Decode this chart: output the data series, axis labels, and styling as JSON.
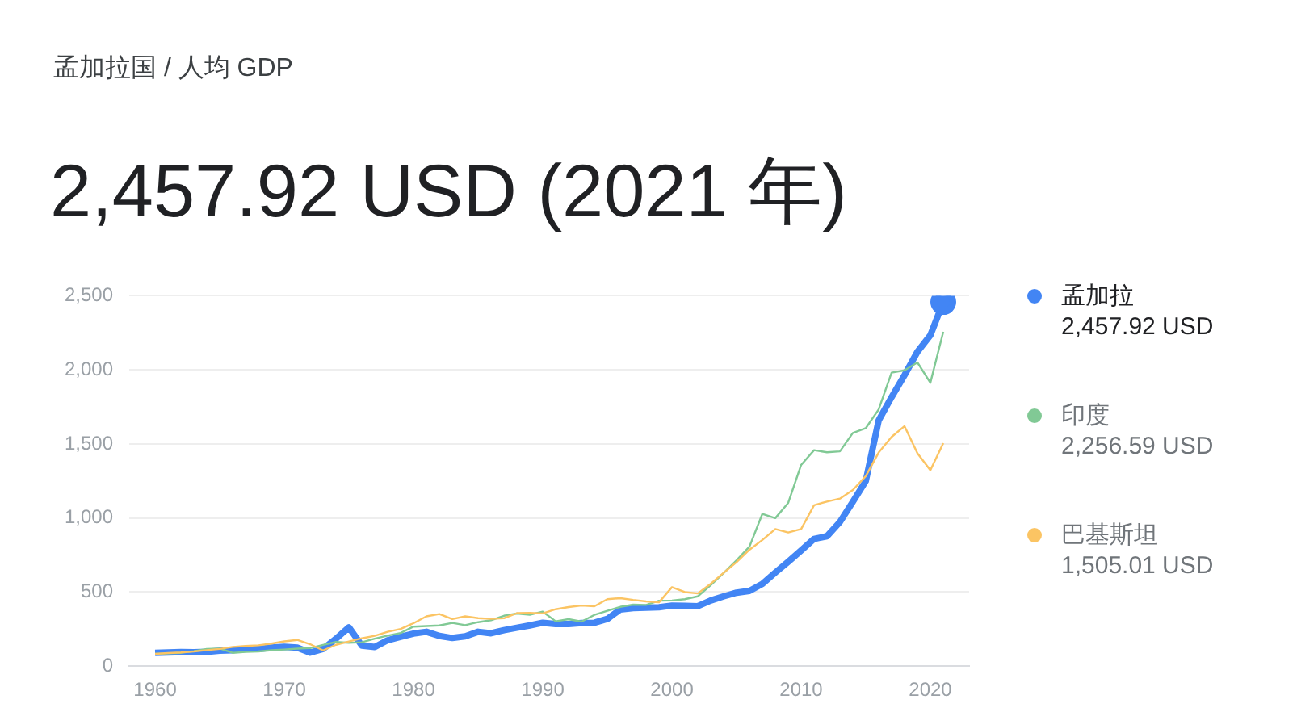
{
  "chart_data": {
    "type": "line",
    "title": "孟加拉国 / 人均 GDP",
    "subtitle": "2,457.92 USD (2021 年)",
    "x": [
      1960,
      1961,
      1962,
      1963,
      1964,
      1965,
      1966,
      1967,
      1968,
      1969,
      1970,
      1971,
      1972,
      1973,
      1974,
      1975,
      1976,
      1977,
      1978,
      1979,
      1980,
      1981,
      1982,
      1983,
      1984,
      1985,
      1986,
      1987,
      1988,
      1989,
      1990,
      1991,
      1992,
      1993,
      1994,
      1995,
      1996,
      1997,
      1998,
      1999,
      2000,
      2001,
      2002,
      2003,
      2004,
      2005,
      2006,
      2007,
      2008,
      2009,
      2010,
      2011,
      2012,
      2013,
      2014,
      2015,
      2016,
      2017,
      2018,
      2019,
      2020,
      2021
    ],
    "series": [
      {
        "name": "孟加拉",
        "color": "#4285f4",
        "values": [
          89,
          92,
          95,
          94,
          97,
          104,
          108,
          115,
          115,
          125,
          131,
          125,
          91,
          116,
          185,
          262,
          139,
          129,
          175,
          198,
          220,
          232,
          204,
          190,
          201,
          232,
          222,
          243,
          259,
          275,
          293,
          284,
          285,
          291,
          293,
          319,
          383,
          392,
          395,
          398,
          409,
          407,
          405,
          443,
          471,
          496,
          508,
          555,
          632,
          705,
          781,
          859,
          877,
          973,
          1109,
          1249,
          1659,
          1816,
          1964,
          2122,
          2234,
          2457.92
        ]
      },
      {
        "name": "印度",
        "color": "#81c995",
        "values": [
          83,
          86,
          90,
          101,
          116,
          119,
          90,
          96,
          99,
          107,
          112,
          118,
          122,
          143,
          163,
          158,
          161,
          186,
          206,
          224,
          267,
          271,
          275,
          292,
          277,
          297,
          310,
          340,
          355,
          347,
          368,
          303,
          317,
          301,
          346,
          374,
          400,
          415,
          413,
          442,
          443,
          452,
          471,
          547,
          628,
          714,
          807,
          1028,
          999,
          1102,
          1358,
          1458,
          1444,
          1450,
          1574,
          1606,
          1733,
          1981,
          1997,
          2050,
          1913,
          2256.59
        ]
      },
      {
        "name": "巴基斯坦",
        "color": "#fbc463",
        "values": [
          83,
          88,
          92,
          99,
          108,
          116,
          130,
          136,
          141,
          152,
          167,
          177,
          148,
          106,
          144,
          167,
          188,
          205,
          232,
          251,
          290,
          336,
          352,
          318,
          336,
          324,
          319,
          323,
          358,
          359,
          356,
          384,
          399,
          409,
          404,
          452,
          459,
          447,
          437,
          431,
          533,
          500,
          491,
          556,
          630,
          702,
          786,
          852,
          925,
          902,
          925,
          1086,
          1111,
          1131,
          1189,
          1282,
          1442,
          1547,
          1620,
          1437,
          1322,
          1505.01
        ]
      }
    ],
    "annotations": [
      "2,457.92 USD",
      "2,256.59 USD",
      "1,505.01 USD"
    ],
    "xlim": [
      1958,
      2023
    ],
    "xticks": [
      1960,
      1970,
      1980,
      1990,
      2000,
      2010,
      2020
    ],
    "ylim": [
      0,
      2500
    ],
    "yticks": [
      {
        "value": 0,
        "label": "0"
      },
      {
        "value": 500,
        "label": "500"
      },
      {
        "value": 1000,
        "label": "1,000"
      },
      {
        "value": 1500,
        "label": "1,500"
      },
      {
        "value": 2000,
        "label": "2,000"
      },
      {
        "value": 2500,
        "label": "2,500"
      }
    ],
    "grid": "y",
    "legend": "right"
  }
}
